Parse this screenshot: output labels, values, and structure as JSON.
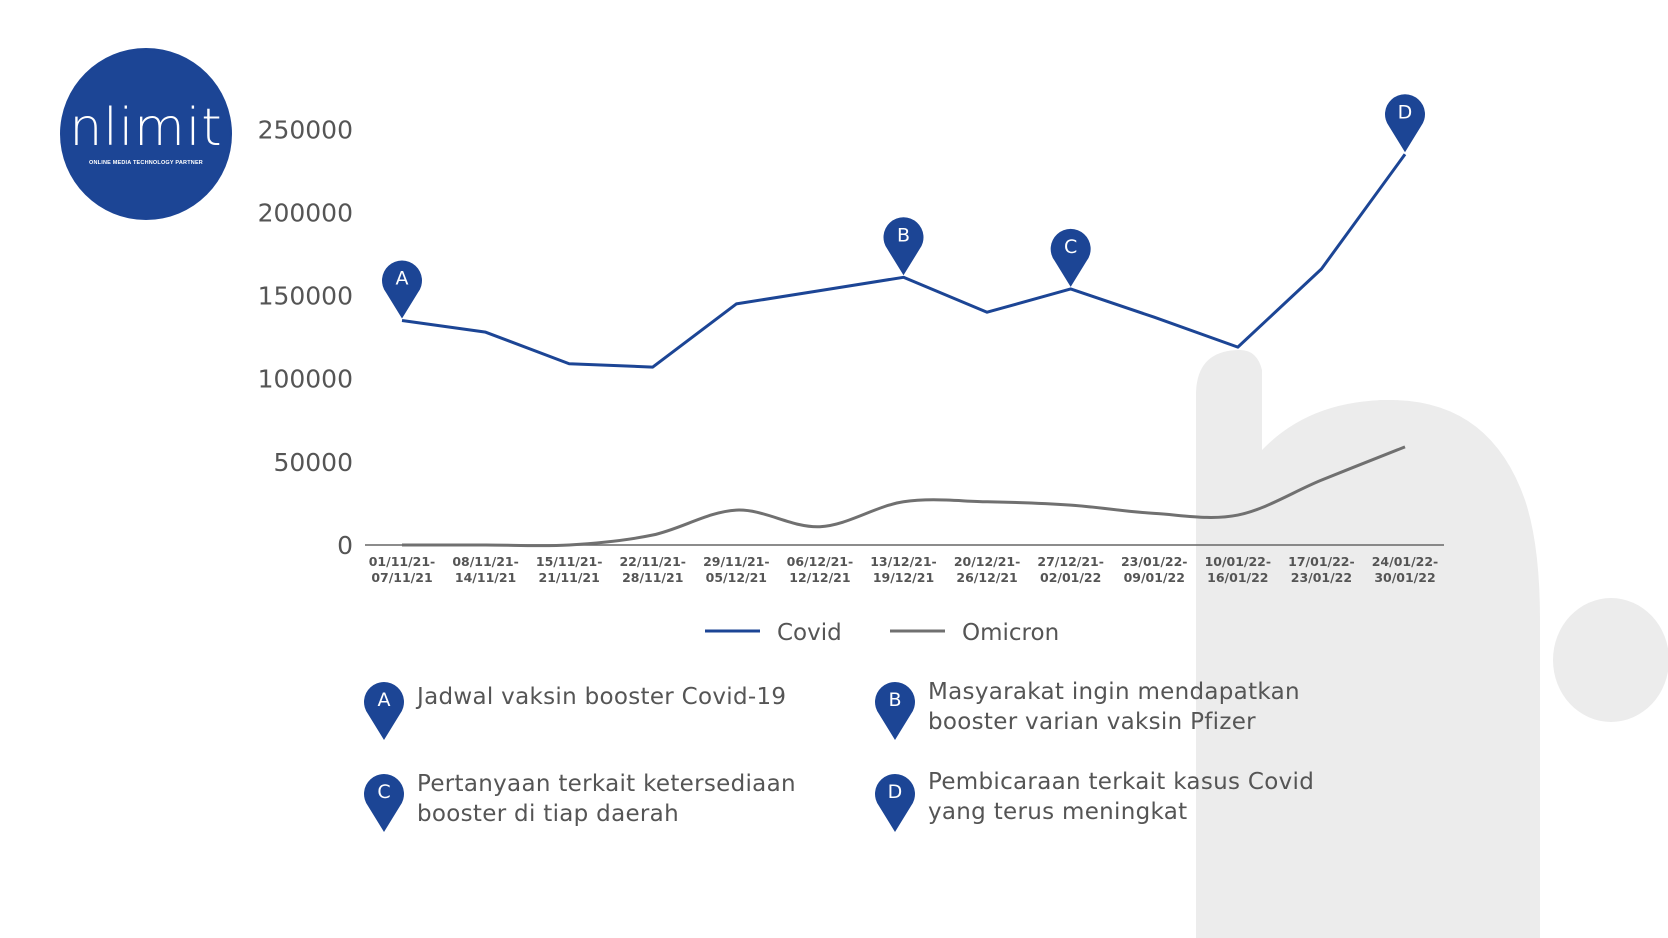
{
  "logo": {
    "wordmark": "nlimit",
    "tagline": "ONLINE MEDIA TECHNOLOGY PARTNER"
  },
  "chart_data": {
    "type": "line",
    "categories": [
      "01/11/21-\n07/11/21",
      "08/11/21-\n14/11/21",
      "15/11/21-\n21/11/21",
      "22/11/21-\n28/11/21",
      "29/11/21-\n05/12/21",
      "06/12/21-\n12/12/21",
      "13/12/21-\n19/12/21",
      "20/12/21-\n26/12/21",
      "27/12/21-\n02/01/22",
      "23/01/22-\n09/01/22",
      "10/01/22-\n16/01/22",
      "17/01/22-\n23/01/22",
      "24/01/22-\n30/01/22"
    ],
    "series": [
      {
        "name": "Covid",
        "color": "#1c4595",
        "values": [
          135000,
          128000,
          109000,
          107000,
          145000,
          153000,
          161000,
          140000,
          154000,
          137000,
          119000,
          166000,
          235000
        ]
      },
      {
        "name": "Omicron",
        "color": "#707070",
        "values": [
          0,
          0,
          0,
          6000,
          21000,
          11000,
          26000,
          26000,
          24000,
          19000,
          18000,
          39000,
          59000
        ]
      }
    ],
    "yticks": [
      0,
      50000,
      100000,
      150000,
      200000,
      250000
    ],
    "ylim": [
      0,
      255000
    ],
    "grid": false,
    "legend": "bottom-center",
    "markers": [
      {
        "label": "A",
        "index": 0,
        "series": "Covid"
      },
      {
        "label": "B",
        "index": 6,
        "series": "Covid"
      },
      {
        "label": "C",
        "index": 8,
        "series": "Covid"
      },
      {
        "label": "D",
        "index": 12,
        "series": "Covid"
      }
    ]
  },
  "notes": [
    {
      "letter": "A",
      "text": "Jadwal vaksin booster Covid-19"
    },
    {
      "letter": "B",
      "text": "Masyarakat ingin mendapatkan booster varian vaksin Pfizer"
    },
    {
      "letter": "C",
      "text": "Pertanyaan terkait ketersediaan booster di tiap daerah"
    },
    {
      "letter": "D",
      "text": "Pembicaraan terkait kasus Covid yang terus meningkat"
    }
  ],
  "colors": {
    "primary": "#1c4595",
    "secondary": "#707070",
    "watermark": "#ececec"
  }
}
